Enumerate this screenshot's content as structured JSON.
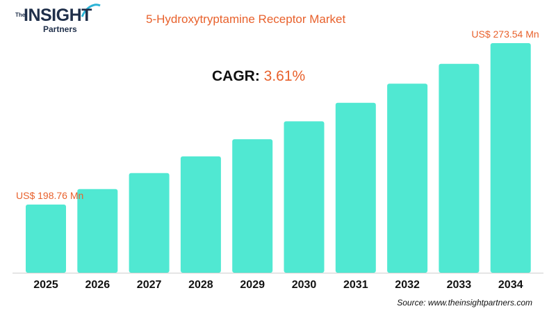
{
  "brand": {
    "the": "The",
    "name": "INSIGHT",
    "sub": "Partners"
  },
  "chart_data": {
    "type": "bar",
    "title": "5-Hydroxytryptamine Receptor Market",
    "categories": [
      "2025",
      "2026",
      "2027",
      "2028",
      "2029",
      "2030",
      "2031",
      "2032",
      "2033",
      "2034"
    ],
    "values": [
      198.76,
      205.93,
      213.36,
      221.06,
      229.04,
      237.32,
      245.89,
      254.77,
      263.97,
      273.54
    ],
    "value_labels": [
      {
        "category": "2025",
        "text": "US$ 198.76 Mn"
      },
      {
        "category": "2034",
        "text": "US$ 273.54 Mn"
      }
    ],
    "cagr_label": "CAGR:",
    "cagr_value": "3.61%",
    "bar_color": "#50e8d2",
    "accent_color": "#e8612c",
    "grid": false,
    "ylabel": "",
    "xlabel": ""
  },
  "source": "Source: www.theinsightpartners.com"
}
